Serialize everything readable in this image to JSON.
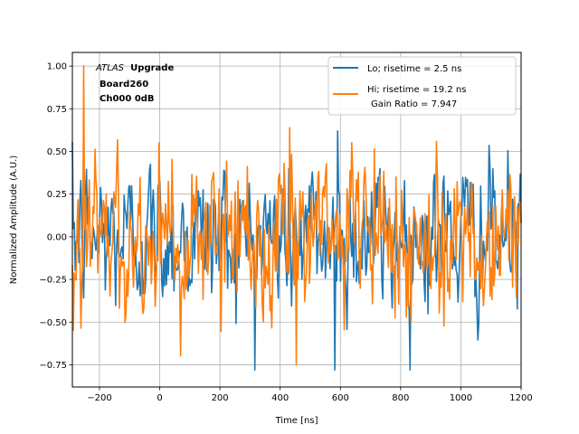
{
  "chart_data": {
    "type": "line",
    "title": "",
    "xlabel": "Time [ns]",
    "ylabel": "Normalized Amplitude (A.U.)",
    "xlim": [
      -290,
      1200
    ],
    "ylim": [
      -0.88,
      1.08
    ],
    "xticks": [
      -200,
      0,
      200,
      400,
      600,
      800,
      1000,
      1200
    ],
    "xtick_labels": [
      "−200",
      "0",
      "200",
      "400",
      "600",
      "800",
      "1000",
      "1200"
    ],
    "yticks": [
      -0.75,
      -0.5,
      -0.25,
      0.0,
      0.25,
      0.5,
      0.75,
      1.0
    ],
    "ytick_labels": [
      "−0.75",
      "−0.50",
      "−0.25",
      "0.00",
      "0.25",
      "0.50",
      "0.75",
      "1.00"
    ],
    "grid": true,
    "legend_position": "top-right",
    "annotation": {
      "atlas": "ATLAS",
      "upgrade": "Upgrade",
      "board": "Board260",
      "channel": "Ch000 0dB"
    },
    "series": [
      {
        "name": "Lo; risetime = 2.5 ns",
        "color": "#1f77b4",
        "description": "noise-like waveform, normalized, samples every ~3.125 ns",
        "x_start": -290,
        "x_end": 1200,
        "n_points": 478,
        "noise_amplitude": 0.2,
        "min_value": -0.78,
        "max_value": 0.63
      },
      {
        "name": "Hi; risetime = 19.2 ns",
        "extra": "Gain Ratio = 7.947",
        "color": "#ff7f0e",
        "description": "noise-like waveform, normalized, samples every ~3.125 ns",
        "x_start": -290,
        "x_end": 1200,
        "n_points": 478,
        "noise_amplitude": 0.22,
        "min_value": -0.75,
        "max_value": 1.0
      }
    ]
  }
}
